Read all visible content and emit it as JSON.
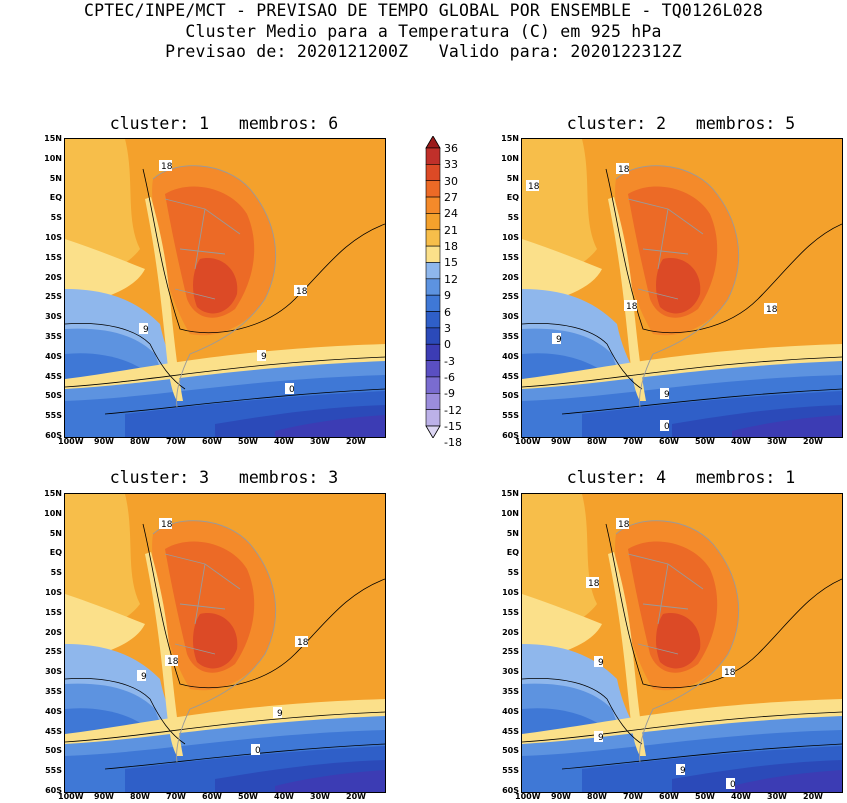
{
  "header": {
    "line1": "CPTEC/INPE/MCT - PREVISAO DE TEMPO GLOBAL POR ENSEMBLE - TQ0126L028",
    "line2": "Cluster Medio para a Temperatura (C) em 925 hPa",
    "line3": "Previsao de: 2020121200Z   Valido para: 2020122312Z"
  },
  "axes": {
    "lat_labels": [
      "15N",
      "10N",
      "5N",
      "EQ",
      "5S",
      "10S",
      "15S",
      "20S",
      "25S",
      "30S",
      "35S",
      "40S",
      "45S",
      "50S",
      "55S",
      "60S"
    ],
    "lon_labels": [
      "100W",
      "90W",
      "80W",
      "70W",
      "60W",
      "50W",
      "40W",
      "30W",
      "20W"
    ]
  },
  "colorbar": {
    "labels": [
      "36",
      "33",
      "30",
      "27",
      "24",
      "21",
      "18",
      "15",
      "12",
      "9",
      "6",
      "3",
      "0",
      "-3",
      "-6",
      "-9",
      "-12",
      "-15",
      "-18"
    ],
    "colors": [
      "#9b1b1b",
      "#c0302a",
      "#dc4a26",
      "#ec6a26",
      "#f48a2a",
      "#f4a12c",
      "#f7be4a",
      "#fbe08a",
      "#8fb7ec",
      "#5d93e0",
      "#3f78d6",
      "#2f5fc8",
      "#2b4ab9",
      "#3c3cb4",
      "#5a4fc2",
      "#7a6cd0",
      "#9b8ddc",
      "#bcb1e8",
      "#dcd6f3"
    ],
    "style": "vertical with triangular end caps"
  },
  "panels": [
    {
      "title": "cluster: 1   membros: 6",
      "contour_labels": [
        "18",
        "18",
        "9",
        "9",
        "0"
      ]
    },
    {
      "title": "cluster: 2   membros: 5",
      "contour_labels": [
        "18",
        "18",
        "18",
        "18",
        "9",
        "9",
        "0"
      ]
    },
    {
      "title": "cluster: 3   membros: 3",
      "contour_labels": [
        "18",
        "18",
        "18",
        "9",
        "9",
        "0"
      ]
    },
    {
      "title": "cluster: 4   membros: 1",
      "contour_labels": [
        "18",
        "18",
        "18",
        "9",
        "9",
        "9",
        "0"
      ]
    }
  ],
  "map": {
    "region": "South America",
    "variable": "Temperatura (C) em 925 hPa",
    "contour_interval": 9,
    "land_borders_color": "#9a9a9a"
  }
}
